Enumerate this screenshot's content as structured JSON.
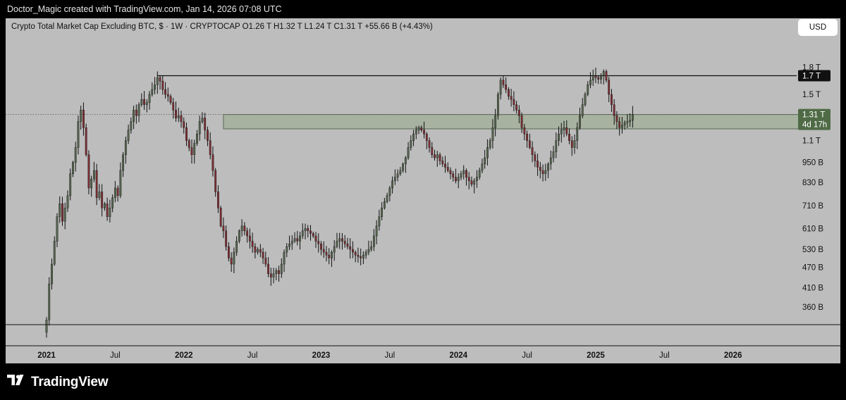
{
  "header": {
    "credit": "Doctor_Magic created with TradingView.com, Jan 14, 2026 07:08 UTC"
  },
  "legend": {
    "text": "Crypto Total Market Cap Excluding BTC, $ · 1W · CRYPTOCAP  O1.26 T  H1.32 T  L1.24 T  C1.31 T  +55.66 B (+4.43%)"
  },
  "currency_button": "USD",
  "footer": {
    "brand": "TradingView"
  },
  "colors": {
    "up": "#56654f",
    "down": "#7d2e33",
    "zone_fill": "#a3b09b",
    "zone_stroke": "#5d6a57",
    "background": "#bdbdbd",
    "price_tag_green": "#4f6b46"
  },
  "chart_data": {
    "type": "candlestick",
    "title": "Crypto Total Market Cap Excluding BTC, $ · 1W · CRYPTOCAP",
    "scale": "log",
    "ylim": [
      340000000000,
      1900000000000
    ],
    "y_tick_labels": [
      "1.8 T",
      "1.5 T",
      "1.1 T",
      "950 B",
      "830 B",
      "710 B",
      "610 B",
      "530 B",
      "470 B",
      "410 B",
      "360 B"
    ],
    "y_tick_values": [
      1800000000000,
      1500000000000,
      1100000000000,
      950000000000,
      830000000000,
      710000000000,
      610000000000,
      530000000000,
      470000000000,
      410000000000,
      360000000000
    ],
    "x_tick_labels": [
      {
        "label": "2021",
        "bold": true
      },
      {
        "label": "Jul",
        "bold": false
      },
      {
        "label": "2022",
        "bold": true
      },
      {
        "label": "Jul",
        "bold": false
      },
      {
        "label": "2023",
        "bold": true
      },
      {
        "label": "Jul",
        "bold": false
      },
      {
        "label": "2024",
        "bold": true
      },
      {
        "label": "Jul",
        "bold": false
      },
      {
        "label": "2025",
        "bold": true
      },
      {
        "label": "Jul",
        "bold": false
      },
      {
        "label": "2026",
        "bold": true
      }
    ],
    "x_tick_weeks": [
      0,
      26,
      52,
      78,
      104,
      130,
      156,
      182,
      208,
      234,
      260
    ],
    "resistance_line": {
      "value": 1700000000000,
      "label": "1.7 T"
    },
    "support_zone": {
      "low": 1190000000000,
      "high": 1310000000000
    },
    "last_price": {
      "value": 1310000000000,
      "label": "1.31 T",
      "countdown": "4d 17h"
    },
    "ohlc_last": {
      "open": "1.26 T",
      "high": "1.32 T",
      "low": "1.24 T",
      "close": "1.31 T",
      "change": "+55.66 B (+4.43%)"
    },
    "weekly_close_billions": [
      330,
      420,
      480,
      560,
      660,
      720,
      640,
      700,
      760,
      880,
      950,
      1050,
      1250,
      1350,
      1200,
      1000,
      800,
      850,
      900,
      750,
      780,
      700,
      720,
      660,
      700,
      750,
      800,
      760,
      900,
      1000,
      1100,
      1180,
      1250,
      1350,
      1300,
      1400,
      1450,
      1400,
      1420,
      1500,
      1550,
      1600,
      1680,
      1640,
      1550,
      1500,
      1480,
      1420,
      1350,
      1280,
      1300,
      1250,
      1200,
      1100,
      1050,
      1000,
      1080,
      1150,
      1250,
      1280,
      1180,
      1100,
      1000,
      900,
      780,
      700,
      620,
      600,
      540,
      500,
      480,
      520,
      560,
      600,
      620,
      600,
      580,
      560,
      540,
      520,
      530,
      520,
      500,
      480,
      450,
      440,
      450,
      460,
      450,
      480,
      520,
      540,
      550,
      560,
      570,
      560,
      580,
      600,
      610,
      600,
      590,
      580,
      560,
      550,
      530,
      520,
      510,
      500,
      520,
      540,
      560,
      570,
      560,
      550,
      540,
      530,
      520,
      510,
      505,
      500,
      510,
      520,
      530,
      540,
      580,
      620,
      660,
      700,
      730,
      760,
      800,
      840,
      860,
      880,
      900,
      940,
      980,
      1050,
      1100,
      1150,
      1180,
      1200,
      1180,
      1150,
      1100,
      1050,
      1000,
      980,
      1000,
      960,
      940,
      920,
      900,
      880,
      860,
      840,
      860,
      880,
      900,
      860,
      840,
      820,
      840,
      860,
      900,
      940,
      980,
      1050,
      1100,
      1200,
      1300,
      1500,
      1650,
      1600,
      1550,
      1480,
      1450,
      1400,
      1350,
      1300,
      1200,
      1150,
      1100,
      1050,
      1000,
      960,
      920,
      900,
      880,
      900,
      940,
      980,
      1020,
      1100,
      1150,
      1180,
      1200,
      1150,
      1100,
      1050,
      1100,
      1200,
      1300,
      1400,
      1500,
      1600,
      1650,
      1700,
      1680,
      1660,
      1700,
      1750,
      1650,
      1500,
      1400,
      1300,
      1250,
      1200,
      1220,
      1240,
      1250,
      1260,
      1310
    ]
  }
}
